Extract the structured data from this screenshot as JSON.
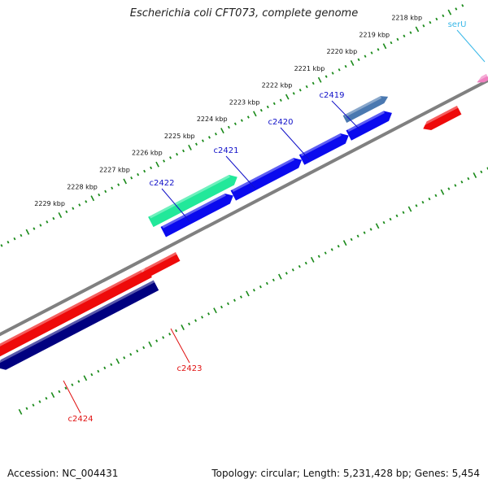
{
  "header": {
    "title": "Escherichia coli CFT073, complete genome"
  },
  "footer": {
    "accession": "Accession: NC_004431",
    "summary": "Topology: circular; Length: 5,231,428 bp; Genes: 5,454"
  },
  "ticks": [
    {
      "label": "2218 kbp"
    },
    {
      "label": "2219 kbp"
    },
    {
      "label": "2220 kbp"
    },
    {
      "label": "2221 kbp"
    },
    {
      "label": "2222 kbp"
    },
    {
      "label": "2223 kbp"
    },
    {
      "label": "2224 kbp"
    },
    {
      "label": "2225 kbp"
    },
    {
      "label": "2226 kbp"
    },
    {
      "label": "2227 kbp"
    },
    {
      "label": "2228 kbp"
    },
    {
      "label": "2229 kbp"
    }
  ],
  "genes": [
    {
      "name": "serU",
      "color": "#39b8e8"
    },
    {
      "name": "c2419",
      "color": "#1010c8"
    },
    {
      "name": "c2420",
      "color": "#1010c8"
    },
    {
      "name": "c2421",
      "color": "#1010c8"
    },
    {
      "name": "c2422",
      "color": "#1010c8"
    },
    {
      "name": "c2423",
      "color": "#e01010"
    },
    {
      "name": "c2424",
      "color": "#e01010"
    }
  ],
  "colors": {
    "backbone": "#808080",
    "tick_green": "#1a8a1a",
    "forward_gene": "#0a0aee",
    "forward_gene_dark": "#000080",
    "reverse_gene": "#ee0a0a",
    "highlight_gene": "#22e89a",
    "steel_gene": "#4a78b0",
    "pink_gene": "#f080c0"
  }
}
